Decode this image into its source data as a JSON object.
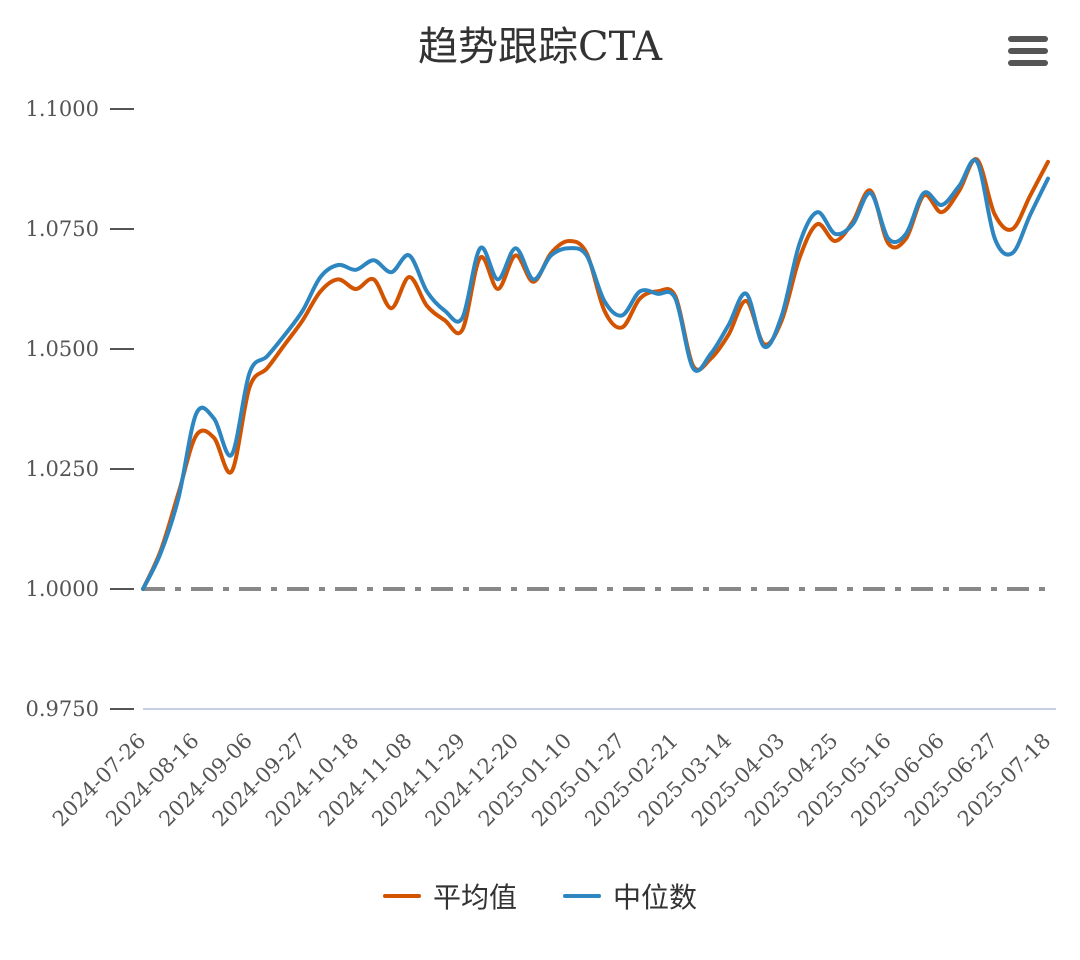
{
  "chart_data": {
    "type": "line",
    "title": "趋势跟踪CTA",
    "xlabel": "",
    "ylabel": "",
    "ylim": [
      0.975,
      1.1
    ],
    "y_ticks": [
      "0.9750",
      "1.0000",
      "1.0250",
      "1.0500",
      "1.0750",
      "1.1000"
    ],
    "x_tick_labels": [
      "2024-07-26",
      "2024-08-16",
      "2024-09-06",
      "2024-09-27",
      "2024-10-18",
      "2024-11-08",
      "2024-11-29",
      "2024-12-20",
      "2025-01-10",
      "2025-01-27",
      "2025-02-21",
      "2025-03-14",
      "2025-04-03",
      "2025-04-25",
      "2025-05-16",
      "2025-06-06",
      "2025-06-27",
      "2025-07-18"
    ],
    "legend_position": "bottom",
    "reference_line": {
      "value": 1.0,
      "style": "dash-dot",
      "color": "#888888"
    },
    "series": [
      {
        "name": "平均值",
        "color": "#d35400",
        "values": [
          1.0,
          1.008,
          1.02,
          1.032,
          1.0315,
          1.0245,
          1.042,
          1.046,
          1.051,
          1.056,
          1.062,
          1.0645,
          1.0625,
          1.0645,
          1.0585,
          1.065,
          1.059,
          1.056,
          1.054,
          1.069,
          1.0625,
          1.0695,
          1.064,
          1.07,
          1.0725,
          1.07,
          1.058,
          1.0545,
          1.0605,
          1.062,
          1.061,
          1.0465,
          1.048,
          1.053,
          1.06,
          1.051,
          1.056,
          1.069,
          1.076,
          1.0725,
          1.0765,
          1.083,
          1.072,
          1.073,
          1.082,
          1.0785,
          1.083,
          1.0895,
          1.078,
          1.075,
          1.082,
          1.089
        ]
      },
      {
        "name": "中位数",
        "color": "#2e86c1",
        "values": [
          1.0,
          1.0075,
          1.019,
          1.0365,
          1.0355,
          1.028,
          1.045,
          1.0485,
          1.053,
          1.058,
          1.065,
          1.0675,
          1.0665,
          1.0685,
          1.066,
          1.0695,
          1.062,
          1.058,
          1.0565,
          1.071,
          1.0645,
          1.071,
          1.0645,
          1.0695,
          1.071,
          1.0695,
          1.06,
          1.057,
          1.062,
          1.0615,
          1.0605,
          1.046,
          1.049,
          1.055,
          1.0615,
          1.0505,
          1.057,
          1.072,
          1.0785,
          1.074,
          1.076,
          1.0825,
          1.073,
          1.074,
          1.0825,
          1.08,
          1.084,
          1.089,
          1.073,
          1.07,
          1.078,
          1.0855
        ]
      }
    ]
  },
  "ui": {
    "menu_icon": "hamburger-menu-icon"
  }
}
